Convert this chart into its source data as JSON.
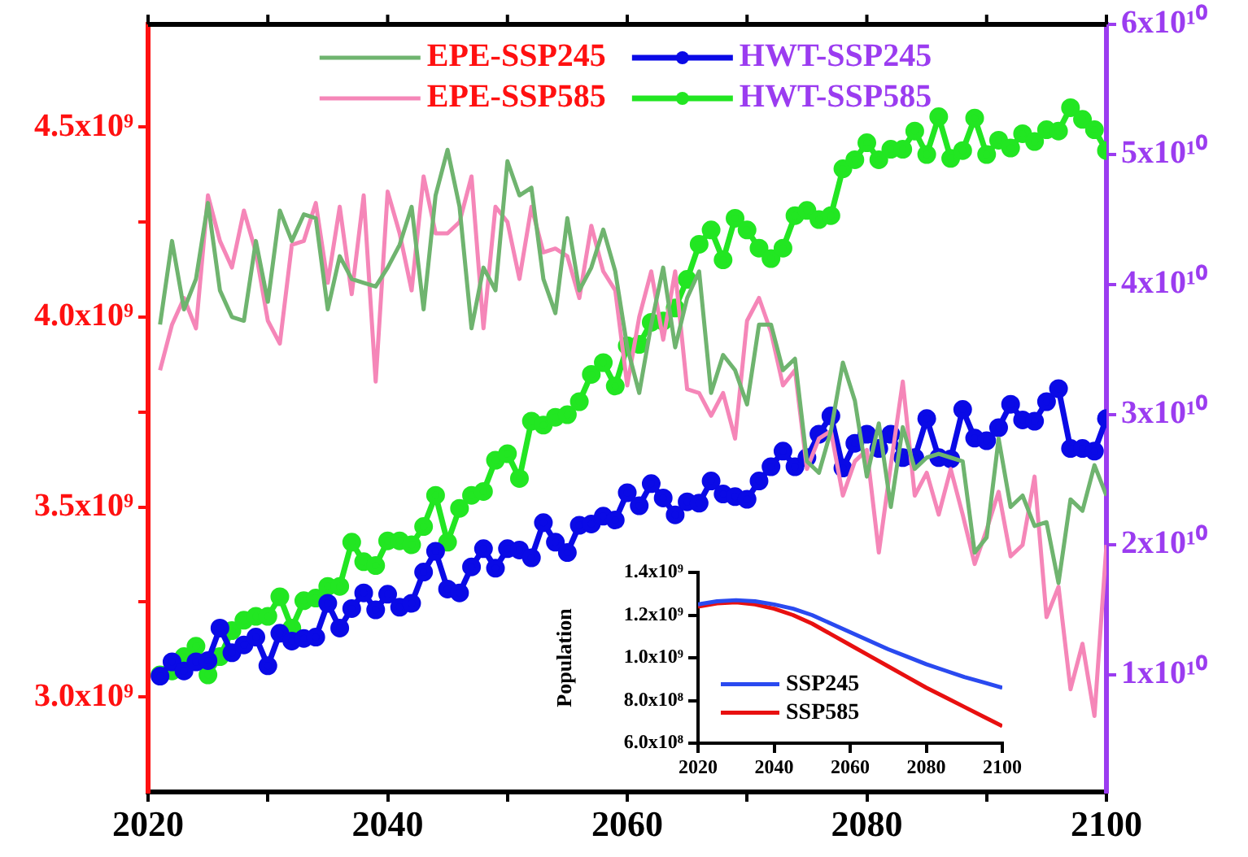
{
  "chart_data": [
    {
      "type": "line",
      "x": [
        2021,
        2022,
        2023,
        2024,
        2025,
        2026,
        2027,
        2028,
        2029,
        2030,
        2031,
        2032,
        2033,
        2034,
        2035,
        2036,
        2037,
        2038,
        2039,
        2040,
        2041,
        2042,
        2043,
        2044,
        2045,
        2046,
        2047,
        2048,
        2049,
        2050,
        2051,
        2052,
        2053,
        2054,
        2055,
        2056,
        2057,
        2058,
        2059,
        2060,
        2061,
        2062,
        2063,
        2064,
        2065,
        2066,
        2067,
        2068,
        2069,
        2070,
        2071,
        2072,
        2073,
        2074,
        2075,
        2076,
        2077,
        2078,
        2079,
        2080,
        2081,
        2082,
        2083,
        2084,
        2085,
        2086,
        2087,
        2088,
        2089,
        2090,
        2091,
        2092,
        2093,
        2094,
        2095,
        2096,
        2097,
        2098,
        2099,
        2100
      ],
      "series": [
        {
          "name": "EPE-SSP245",
          "color": "#6fb46f",
          "axis": "y",
          "marker": "none",
          "values": [
            3980000000.0,
            4200000000.0,
            4020000000.0,
            4100000000.0,
            4300000000.0,
            4070000000.0,
            4000000000.0,
            3990000000.0,
            4200000000.0,
            4040000000.0,
            4280000000.0,
            4200000000.0,
            4270000000.0,
            4260000000.0,
            4020000000.0,
            4160000000.0,
            4100000000.0,
            4090000000.0,
            4080000000.0,
            4130000000.0,
            4190000000.0,
            4290000000.0,
            4020000000.0,
            4320000000.0,
            4440000000.0,
            4290000000.0,
            3970000000.0,
            4130000000.0,
            4070000000.0,
            4410000000.0,
            4320000000.0,
            4340000000.0,
            4100000000.0,
            4010000000.0,
            4260000000.0,
            4070000000.0,
            4130000000.0,
            4230000000.0,
            4120000000.0,
            3920000000.0,
            3800000000.0,
            3980000000.0,
            4130000000.0,
            3920000000.0,
            4050000000.0,
            4120000000.0,
            3800000000.0,
            3900000000.0,
            3860000000.0,
            3770000000.0,
            3980000000.0,
            3980000000.0,
            3860000000.0,
            3890000000.0,
            3620000000.0,
            3590000000.0,
            3700000000.0,
            3880000000.0,
            3780000000.0,
            3580000000.0,
            3720000000.0,
            3500000000.0,
            3710000000.0,
            3600000000.0,
            3630000000.0,
            3640000000.0,
            3630000000.0,
            3620000000.0,
            3380000000.0,
            3420000000.0,
            3680000000.0,
            3500000000.0,
            3530000000.0,
            3450000000.0,
            3460000000.0,
            3300000000.0,
            3520000000.0,
            3490000000.0,
            3610000000.0,
            3530000000.0
          ]
        },
        {
          "name": "EPE-SSP585",
          "color": "#f586b8",
          "axis": "y",
          "marker": "none",
          "values": [
            3860000000.0,
            3980000000.0,
            4050000000.0,
            3970000000.0,
            4320000000.0,
            4200000000.0,
            4130000000.0,
            4280000000.0,
            4170000000.0,
            3990000000.0,
            3930000000.0,
            4190000000.0,
            4200000000.0,
            4300000000.0,
            4090000000.0,
            4290000000.0,
            4060000000.0,
            4320000000.0,
            3830000000.0,
            4330000000.0,
            4220000000.0,
            4070000000.0,
            4370000000.0,
            4220000000.0,
            4220000000.0,
            4250000000.0,
            4370000000.0,
            3970000000.0,
            4290000000.0,
            4250000000.0,
            4100000000.0,
            4290000000.0,
            4170000000.0,
            4180000000.0,
            4160000000.0,
            4050000000.0,
            4240000000.0,
            4120000000.0,
            4070000000.0,
            3820000000.0,
            4000000000.0,
            4120000000.0,
            3940000000.0,
            4120000000.0,
            3810000000.0,
            3800000000.0,
            3740000000.0,
            3800000000.0,
            3680000000.0,
            3990000000.0,
            4050000000.0,
            3960000000.0,
            3820000000.0,
            3860000000.0,
            3600000000.0,
            3680000000.0,
            3700000000.0,
            3530000000.0,
            3620000000.0,
            3650000000.0,
            3380000000.0,
            3610000000.0,
            3830000000.0,
            3530000000.0,
            3590000000.0,
            3480000000.0,
            3600000000.0,
            3480000000.0,
            3350000000.0,
            3440000000.0,
            3540000000.0,
            3370000000.0,
            3400000000.0,
            3580000000.0,
            3210000000.0,
            3290000000.0,
            3020000000.0,
            3140000000.0,
            2950000000.0,
            3400000000.0
          ]
        },
        {
          "name": "HWT-SSP245",
          "color": "#0a0ae6",
          "axis": "y2",
          "marker": "circle",
          "values": [
            9900000000.0,
            11000000000.0,
            10300000000.0,
            11000000000.0,
            11100000000.0,
            13600000000.0,
            11700000000.0,
            12300000000.0,
            12900000000.0,
            10700000000.0,
            13200000000.0,
            12600000000.0,
            12800000000.0,
            12900000000.0,
            15500000000.0,
            13600000000.0,
            15100000000.0,
            16300000000.0,
            15000000000.0,
            16200000000.0,
            15200000000.0,
            15500000000.0,
            17900000000.0,
            19500000000.0,
            16600000000.0,
            16300000000.0,
            18300000000.0,
            19700000000.0,
            18200000000.0,
            19700000000.0,
            19600000000.0,
            19000000000.0,
            21700000000.0,
            20200000000.0,
            19400000000.0,
            21500000000.0,
            21600000000.0,
            22200000000.0,
            21900000000.0,
            24000000000.0,
            23000000000.0,
            24700000000.0,
            23600000000.0,
            22300000000.0,
            23300000000.0,
            23200000000.0,
            24900000000.0,
            23900000000.0,
            23700000000.0,
            23500000000.0,
            24900000000.0,
            26000000000.0,
            27200000000.0,
            26000000000.0,
            26700000000.0,
            28500000000.0,
            29900000000.0,
            25900000000.0,
            27800000000.0,
            28500000000.0,
            27400000000.0,
            28500000000.0,
            26700000000.0,
            26700000000.0,
            29700000000.0,
            26700000000.0,
            26600000000.0,
            30400000000.0,
            28200000000.0,
            28000000000.0,
            29000000000.0,
            30800000000.0,
            29600000000.0,
            29500000000.0,
            31000000000.0,
            32000000000.0,
            27400000000.0,
            27400000000.0,
            27200000000.0,
            29700000000.0
          ]
        },
        {
          "name": "HWT-SSP585",
          "color": "#22e622",
          "axis": "y2",
          "marker": "circle",
          "values": [
            10000000000.0,
            10300000000.0,
            11400000000.0,
            12200000000.0,
            10000000000.0,
            11400000000.0,
            13400000000.0,
            14200000000.0,
            14500000000.0,
            14500000000.0,
            16000000000.0,
            13600000000.0,
            15700000000.0,
            15900000000.0,
            16800000000.0,
            16800000000.0,
            20200000000.0,
            18700000000.0,
            18400000000.0,
            20300000000.0,
            20300000000.0,
            20000000000.0,
            21400000000.0,
            23800000000.0,
            20200000000.0,
            22800000000.0,
            23800000000.0,
            24100000000.0,
            26500000000.0,
            27000000000.0,
            25100000000.0,
            29500000000.0,
            29200000000.0,
            29800000000.0,
            30000000000.0,
            31000000000.0,
            33100000000.0,
            34000000000.0,
            32200000000.0,
            35300000000.0,
            35400000000.0,
            37100000000.0,
            37200000000.0,
            38200000000.0,
            40400000000.0,
            43100000000.0,
            44200000000.0,
            41900000000.0,
            45100000000.0,
            44200000000.0,
            42800000000.0,
            42000000000.0,
            42800000000.0,
            45300000000.0,
            45700000000.0,
            45000000000.0,
            45300000000.0,
            48900000000.0,
            49600000000.0,
            50900000000.0,
            49600000000.0,
            50400000000.0,
            50400000000.0,
            51800000000.0,
            50000000000.0,
            52900000000.0,
            49700000000.0,
            50300000000.0,
            52800000000.0,
            50000000000.0,
            51100000000.0,
            50500000000.0,
            51600000000.0,
            51000000000.0,
            51900000000.0,
            51800000000.0,
            53600000000.0,
            52700000000.0,
            51900000000.0,
            50300000000.0
          ]
        }
      ],
      "xlim": [
        2020,
        2100
      ],
      "xticks": [
        2020,
        {
          "value": 2030,
          "label": null
        },
        2040,
        {
          "value": 2050,
          "label": null
        },
        2060,
        {
          "value": 2070,
          "label": null
        },
        2080,
        {
          "value": 2090,
          "label": null
        },
        2100
      ],
      "ylim": [
        2750000000.0,
        4770000000.0
      ],
      "yticks": [
        {
          "value": 3000000000.0,
          "label": "3.0x10⁹"
        },
        {
          "value": 3250000000.0,
          "label": null
        },
        {
          "value": 3500000000.0,
          "label": "3.5x10⁹"
        },
        {
          "value": 3750000000.0,
          "label": null
        },
        {
          "value": 4000000000.0,
          "label": "4.0x10⁹"
        },
        {
          "value": 4250000000.0,
          "label": null
        },
        {
          "value": 4500000000.0,
          "label": "4.5x10⁹"
        }
      ],
      "y2lim": [
        1000000000.0,
        60000000000.0
      ],
      "y2ticks": [
        {
          "value": 10000000000.0,
          "label": "1x10¹⁰"
        },
        {
          "value": 20000000000.0,
          "label": "2x10¹⁰"
        },
        {
          "value": 30000000000.0,
          "label": "3x10¹⁰"
        },
        {
          "value": 40000000000.0,
          "label": "4x10¹⁰"
        },
        {
          "value": 50000000000.0,
          "label": "5x10¹⁰"
        },
        {
          "value": 60000000000.0,
          "label": "6x10¹⁰"
        }
      ],
      "legend": "top"
    },
    {
      "type": "line",
      "x": [
        2020,
        2025,
        2030,
        2035,
        2040,
        2045,
        2050,
        2055,
        2060,
        2065,
        2070,
        2075,
        2080,
        2085,
        2090,
        2095,
        2100
      ],
      "ylabel": "Population",
      "series": [
        {
          "name": "SSP245",
          "color": "#2a4af0",
          "values": [
            1250000000.0,
            1265000000.0,
            1270000000.0,
            1265000000.0,
            1250000000.0,
            1230000000.0,
            1200000000.0,
            1160000000.0,
            1120000000.0,
            1080000000.0,
            1040000000.0,
            1005000000.0,
            970000000.0,
            940000000.0,
            910000000.0,
            885000000.0,
            860000000.0
          ]
        },
        {
          "name": "SSP585",
          "color": "#e81010",
          "values": [
            1240000000.0,
            1255000000.0,
            1260000000.0,
            1250000000.0,
            1230000000.0,
            1200000000.0,
            1160000000.0,
            1110000000.0,
            1060000000.0,
            1010000000.0,
            960000000.0,
            910000000.0,
            860000000.0,
            815000000.0,
            770000000.0,
            725000000.0,
            680000000.0
          ]
        }
      ],
      "xlim": [
        2020,
        2100
      ],
      "xticks": [
        2020,
        2040,
        2060,
        2080,
        2100
      ],
      "ylim": [
        600000000.0,
        1400000000.0
      ],
      "yticks": [
        {
          "value": 600000000.0,
          "label": "6.0x10⁸"
        },
        {
          "value": 800000000.0,
          "label": "8.0x10⁸"
        },
        {
          "value": 1000000000.0,
          "label": "1.0x10⁹"
        },
        {
          "value": 1200000000.0,
          "label": "1.2x10⁹"
        },
        {
          "value": 1400000000.0,
          "label": "1.4x10⁹"
        }
      ],
      "legend": "bottom left"
    }
  ]
}
